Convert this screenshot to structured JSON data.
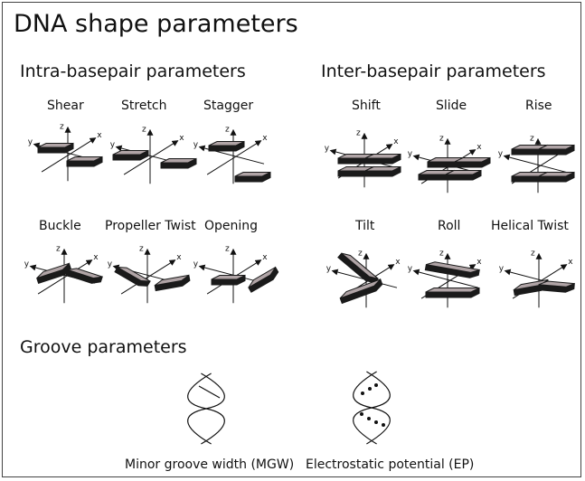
{
  "title": "DNA shape parameters",
  "sections": {
    "intra": "Intra-basepair parameters",
    "inter": "Inter-basepair parameters",
    "groove": "Groove parameters"
  },
  "intra_params": [
    "Shear",
    "Stretch",
    "Stagger",
    "Buckle",
    "Propeller Twist",
    "Opening"
  ],
  "inter_params": [
    "Shift",
    "Slide",
    "Rise",
    "Tilt",
    "Roll",
    "Helical Twist"
  ],
  "groove_params": [
    "Minor groove width (MGW)",
    "Electrostatic potential (EP)"
  ],
  "axis_labels": {
    "x": "x",
    "y": "y",
    "z": "z"
  },
  "colors": {
    "plate_top": "#b0a4a6",
    "plate_side": "#1a1a1a",
    "line": "#111111"
  }
}
